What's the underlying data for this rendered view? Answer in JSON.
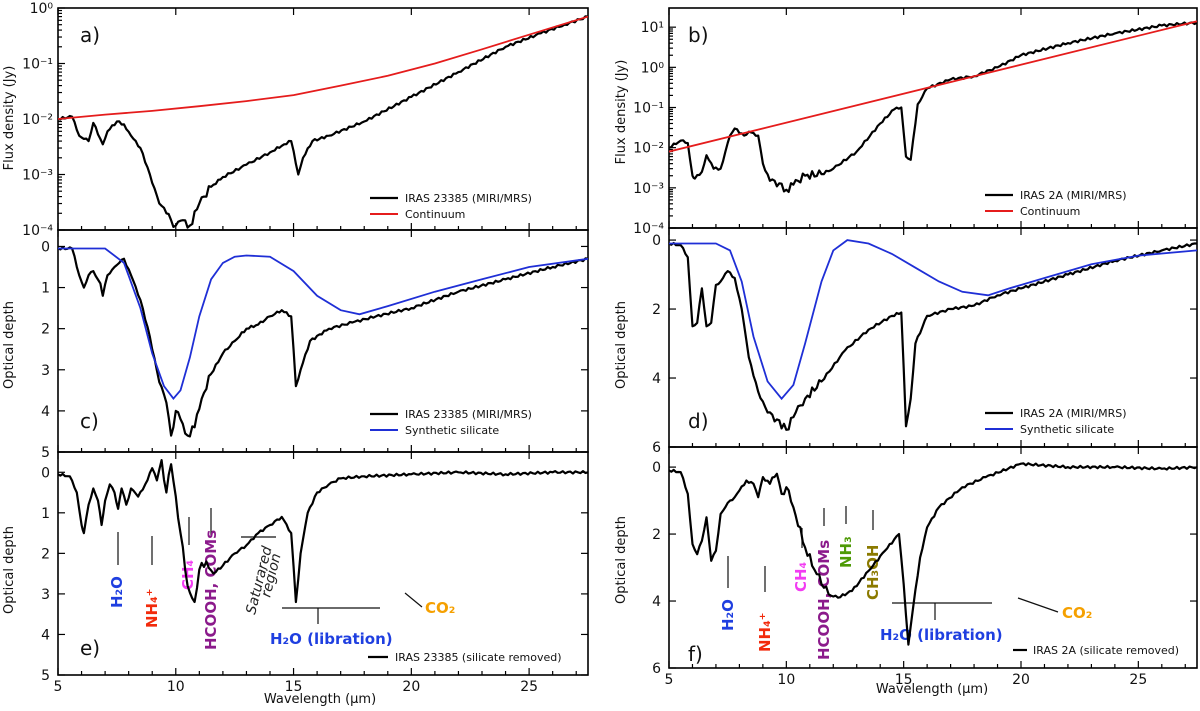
{
  "figure": {
    "xlabel": "Wavelength (µm)",
    "x_ticks": [
      5,
      10,
      15,
      20,
      25
    ],
    "xlim": [
      5,
      27.5
    ]
  },
  "colors": {
    "observed": "#000000",
    "continuum": "#e51c1c",
    "synthetic": "#1f2fd6",
    "h2o": "#1f3fe0",
    "nh4": "#f22b0c",
    "ch4": "#f23cf2",
    "hcooh": "#8b1a8b",
    "nh3": "#4e9a06",
    "ch3oh": "#8b7a00",
    "co2": "#f5a000"
  },
  "chart_data": [
    {
      "id": "a",
      "type": "line",
      "panel_label": "a)",
      "ylabel": "Flux density (Jy)",
      "yscale": "log",
      "ylim": [
        0.0001,
        1
      ],
      "y_tick_labels": [
        "10⁰",
        "10⁻¹",
        "10⁻²",
        "10⁻³",
        "10⁻⁴"
      ],
      "legend": [
        "IRAS 23385 (MIRI/MRS)",
        "Continuum"
      ],
      "series": [
        {
          "name": "IRAS 23385 (MIRI/MRS)",
          "x": [
            5,
            5.6,
            5.9,
            6.3,
            6.5,
            6.9,
            7.1,
            7.5,
            7.8,
            8.1,
            8.5,
            8.9,
            9.3,
            9.6,
            9.8,
            10.0,
            10.3,
            10.6,
            11.0,
            11.5,
            12.0,
            13.0,
            14.0,
            14.6,
            14.9,
            15.2,
            15.4,
            15.8,
            16.5,
            18.0,
            20.0,
            22.0,
            24.0,
            25.5,
            26.5,
            27.5
          ],
          "y": [
            0.01,
            0.011,
            0.005,
            0.004,
            0.0085,
            0.0035,
            0.006,
            0.009,
            0.008,
            0.005,
            0.003,
            0.001,
            0.0003,
            0.0002,
            0.00015,
            0.00012,
            0.00015,
            0.00012,
            0.0003,
            0.0006,
            0.0009,
            0.0015,
            0.0025,
            0.0035,
            0.004,
            0.001,
            0.002,
            0.004,
            0.005,
            0.009,
            0.025,
            0.07,
            0.2,
            0.35,
            0.5,
            0.7
          ]
        },
        {
          "name": "Continuum",
          "x": [
            5,
            7,
            9,
            11,
            13,
            15,
            17,
            19,
            21,
            23,
            25,
            27.5
          ],
          "y": [
            0.01,
            0.012,
            0.014,
            0.017,
            0.021,
            0.027,
            0.04,
            0.06,
            0.1,
            0.18,
            0.33,
            0.7
          ]
        }
      ]
    },
    {
      "id": "b",
      "type": "line",
      "panel_label": "b)",
      "ylabel": "Flux density (Jy)",
      "yscale": "log",
      "ylim": [
        0.0001,
        30
      ],
      "y_tick_labels": [
        "10¹",
        "10⁰",
        "10⁻¹",
        "10⁻²",
        "10⁻³",
        "10⁻⁴"
      ],
      "legend": [
        "IRAS 2A (MIRI/MRS)",
        "Continuum"
      ],
      "series": [
        {
          "name": "IRAS 2A (MIRI/MRS)",
          "x": [
            5,
            5.5,
            5.8,
            6.0,
            6.1,
            6.4,
            6.6,
            6.9,
            7.2,
            7.6,
            7.8,
            8.2,
            8.4,
            8.8,
            9.0,
            9.3,
            9.7,
            10.0,
            10.3,
            10.8,
            11.5,
            12.0,
            13.0,
            14.0,
            14.6,
            14.9,
            15.1,
            15.3,
            15.6,
            16.0,
            17.0,
            18.0,
            19.0,
            20.0,
            22.0,
            24.0,
            26.0,
            27.5
          ],
          "y": [
            0.01,
            0.015,
            0.013,
            0.002,
            0.0017,
            0.0025,
            0.0065,
            0.003,
            0.003,
            0.02,
            0.03,
            0.02,
            0.025,
            0.02,
            0.004,
            0.0015,
            0.0013,
            0.0009,
            0.0012,
            0.002,
            0.0022,
            0.003,
            0.008,
            0.04,
            0.09,
            0.1,
            0.006,
            0.005,
            0.12,
            0.3,
            0.5,
            0.6,
            1.0,
            2.0,
            4.0,
            7.0,
            11.0,
            13.0
          ]
        },
        {
          "name": "Continuum",
          "x": [
            5,
            27.5
          ],
          "y": [
            0.008,
            14
          ]
        }
      ]
    },
    {
      "id": "c",
      "type": "line",
      "panel_label": "c)",
      "ylabel": "Optical depth",
      "yscale": "linear",
      "ylim": [
        5,
        -0.4
      ],
      "y_ticks": [
        0,
        1,
        2,
        3,
        4,
        5
      ],
      "legend": [
        "IRAS 23385 (MIRI/MRS)",
        "Synthetic silicate"
      ],
      "series": [
        {
          "name": "IRAS 23385 (MIRI/MRS)",
          "x": [
            5,
            5.6,
            5.9,
            6.1,
            6.3,
            6.5,
            6.8,
            6.9,
            7.1,
            7.4,
            7.6,
            7.8,
            8.1,
            8.5,
            8.9,
            9.3,
            9.6,
            9.8,
            10.0,
            10.2,
            10.5,
            10.8,
            11.1,
            11.5,
            12.0,
            12.5,
            13.0,
            13.5,
            14.0,
            14.5,
            14.9,
            15.1,
            15.3,
            15.7,
            16.5,
            17.5,
            18.5,
            20.0,
            22.0,
            24.0,
            26.0,
            27.5
          ],
          "y": [
            0.05,
            0.05,
            0.7,
            1.0,
            0.7,
            0.6,
            0.9,
            1.2,
            0.7,
            0.5,
            0.4,
            0.3,
            0.7,
            1.3,
            2.2,
            3.3,
            3.8,
            4.6,
            4.0,
            4.2,
            4.6,
            4.4,
            3.7,
            3.1,
            2.6,
            2.3,
            2.0,
            1.9,
            1.7,
            1.55,
            1.7,
            3.4,
            3.0,
            2.3,
            2.0,
            1.85,
            1.7,
            1.5,
            1.1,
            0.8,
            0.5,
            0.3
          ]
        },
        {
          "name": "Synthetic silicate",
          "x": [
            5,
            7.0,
            7.8,
            8.5,
            9.0,
            9.5,
            9.9,
            10.2,
            10.6,
            11.0,
            11.5,
            12.0,
            12.5,
            13.0,
            14.0,
            15.0,
            16.0,
            17.0,
            17.8,
            19.0,
            21.0,
            23.0,
            25.0,
            27.5
          ],
          "y": [
            0.05,
            0.05,
            0.4,
            1.5,
            2.6,
            3.4,
            3.7,
            3.5,
            2.7,
            1.7,
            0.8,
            0.4,
            0.25,
            0.22,
            0.25,
            0.6,
            1.2,
            1.55,
            1.65,
            1.45,
            1.1,
            0.8,
            0.5,
            0.3
          ]
        }
      ]
    },
    {
      "id": "d",
      "type": "line",
      "panel_label": "d)",
      "ylabel": "Optical depth",
      "yscale": "linear",
      "ylim": [
        6,
        -0.35
      ],
      "y_ticks": [
        0,
        2,
        4,
        6
      ],
      "legend": [
        "IRAS 2A (MIRI/MRS)",
        "Synthetic silicate"
      ],
      "series": [
        {
          "name": "IRAS 2A (MIRI/MRS)",
          "x": [
            5,
            5.5,
            5.8,
            6.0,
            6.2,
            6.4,
            6.6,
            6.8,
            7.0,
            7.2,
            7.5,
            7.8,
            8.1,
            8.4,
            8.8,
            9.2,
            9.6,
            10.0,
            10.4,
            10.8,
            11.5,
            12.5,
            13.5,
            14.5,
            14.9,
            15.1,
            15.3,
            15.5,
            16.0,
            17.0,
            18.0,
            19.0,
            20.0,
            22.0,
            24.0,
            26.0,
            27.5
          ],
          "y": [
            0.1,
            0.15,
            0.5,
            2.5,
            2.4,
            1.4,
            2.5,
            2.4,
            1.3,
            1.2,
            0.9,
            1.1,
            2.0,
            3.4,
            4.4,
            5.0,
            5.2,
            5.5,
            5.0,
            4.6,
            4.1,
            3.2,
            2.6,
            2.2,
            2.1,
            5.4,
            4.6,
            3.0,
            2.2,
            2.0,
            1.9,
            1.6,
            1.4,
            1.0,
            0.6,
            0.3,
            0.1
          ]
        },
        {
          "name": "Synthetic silicate",
          "x": [
            5,
            7.0,
            7.6,
            8.1,
            8.6,
            9.2,
            9.8,
            10.3,
            10.8,
            11.5,
            12.0,
            12.6,
            13.5,
            14.5,
            15.5,
            16.5,
            17.5,
            18.6,
            19.5,
            21.0,
            23.0,
            25.0,
            27.5
          ],
          "y": [
            0.1,
            0.1,
            0.3,
            1.2,
            2.8,
            4.1,
            4.6,
            4.2,
            3.0,
            1.2,
            0.3,
            0.0,
            0.1,
            0.4,
            0.8,
            1.2,
            1.5,
            1.6,
            1.4,
            1.1,
            0.7,
            0.45,
            0.3
          ]
        }
      ]
    },
    {
      "id": "e",
      "type": "line",
      "panel_label": "e)",
      "ylabel": "Optical depth",
      "yscale": "linear",
      "ylim": [
        5,
        -0.5
      ],
      "y_ticks": [
        0,
        1,
        2,
        3,
        4,
        5
      ],
      "legend": [
        "IRAS 23385 (silicate removed)"
      ],
      "series": [
        {
          "name": "IRAS 23385 (silicate removed)",
          "x": [
            5,
            5.5,
            5.8,
            6.0,
            6.1,
            6.3,
            6.5,
            6.7,
            6.85,
            7.0,
            7.2,
            7.4,
            7.55,
            7.7,
            7.9,
            8.1,
            8.4,
            8.7,
            9.0,
            9.2,
            9.4,
            9.6,
            9.8,
            10.0,
            10.2,
            10.5,
            10.8,
            11.0,
            11.3,
            11.6,
            12.0,
            12.5,
            13.0,
            13.5,
            14.0,
            14.5,
            14.9,
            15.1,
            15.3,
            15.6,
            16.0,
            16.5,
            17.0,
            18.0,
            20.0,
            22.0,
            24.0,
            26.0,
            27.5
          ],
          "y": [
            0.05,
            0.1,
            0.5,
            1.3,
            1.5,
            0.8,
            0.4,
            0.7,
            1.3,
            0.7,
            0.3,
            0.5,
            0.9,
            0.4,
            0.8,
            0.4,
            0.6,
            0.3,
            -0.1,
            0.2,
            -0.3,
            0.5,
            -0.2,
            0.6,
            1.5,
            2.8,
            3.2,
            2.4,
            2.2,
            2.5,
            2.3,
            2.0,
            1.8,
            1.5,
            1.3,
            1.1,
            1.5,
            3.2,
            2.0,
            1.0,
            0.5,
            0.3,
            0.15,
            0.1,
            0.05,
            0.0,
            0.05,
            0.0,
            0.0
          ]
        }
      ],
      "annotations": [
        {
          "text": "H₂O",
          "color": "h2o"
        },
        {
          "text": "NH₄⁺",
          "color": "nh4"
        },
        {
          "text": "CH₄",
          "color": "ch4"
        },
        {
          "text": "HCOOH, COMs",
          "color": "hcooh"
        },
        {
          "text": "Saturared",
          "color": "black"
        },
        {
          "text": "region",
          "color": "black"
        },
        {
          "text": "H₂O (libration)",
          "color": "h2o"
        },
        {
          "text": "CO₂",
          "color": "co2"
        }
      ]
    },
    {
      "id": "f",
      "type": "line",
      "panel_label": "f)",
      "ylabel": "Optical depth",
      "yscale": "linear",
      "ylim": [
        6,
        -0.6
      ],
      "y_ticks": [
        0,
        2,
        4,
        6
      ],
      "legend": [
        "IRAS 2A (silicate removed)"
      ],
      "series": [
        {
          "name": "IRAS 2A (silicate removed)",
          "x": [
            5,
            5.5,
            5.8,
            6.0,
            6.2,
            6.4,
            6.6,
            6.8,
            7.0,
            7.2,
            7.4,
            7.6,
            7.8,
            8.0,
            8.3,
            8.6,
            8.8,
            9.0,
            9.3,
            9.6,
            9.8,
            10.0,
            10.3,
            10.8,
            11.3,
            11.8,
            12.2,
            12.8,
            13.5,
            14.2,
            14.8,
            15.0,
            15.2,
            15.4,
            15.7,
            16.0,
            16.5,
            17.5,
            18.5,
            20.0,
            22.0,
            24.0,
            26.0,
            27.5
          ],
          "y": [
            0.1,
            0.15,
            0.8,
            2.3,
            2.6,
            2.2,
            1.5,
            2.8,
            2.5,
            1.4,
            1.2,
            1.0,
            0.9,
            0.7,
            0.4,
            0.5,
            0.9,
            0.3,
            0.5,
            0.2,
            0.8,
            0.6,
            1.2,
            2.4,
            3.2,
            3.8,
            3.9,
            3.7,
            3.1,
            2.5,
            2.0,
            3.5,
            5.3,
            4.2,
            2.7,
            1.8,
            1.2,
            0.6,
            0.3,
            -0.1,
            0.0,
            0.0,
            0.05,
            0.0
          ]
        }
      ],
      "annotations": [
        {
          "text": "H₂O",
          "color": "h2o"
        },
        {
          "text": "NH₄⁺",
          "color": "nh4"
        },
        {
          "text": "CH₄",
          "color": "ch4"
        },
        {
          "text": "HCOOH, COMs",
          "color": "hcooh"
        },
        {
          "text": "NH₃",
          "color": "nh3"
        },
        {
          "text": "CH₃OH",
          "color": "ch3oh"
        },
        {
          "text": "H₂O (libration)",
          "color": "h2o"
        },
        {
          "text": "CO₂",
          "color": "co2"
        }
      ]
    }
  ]
}
